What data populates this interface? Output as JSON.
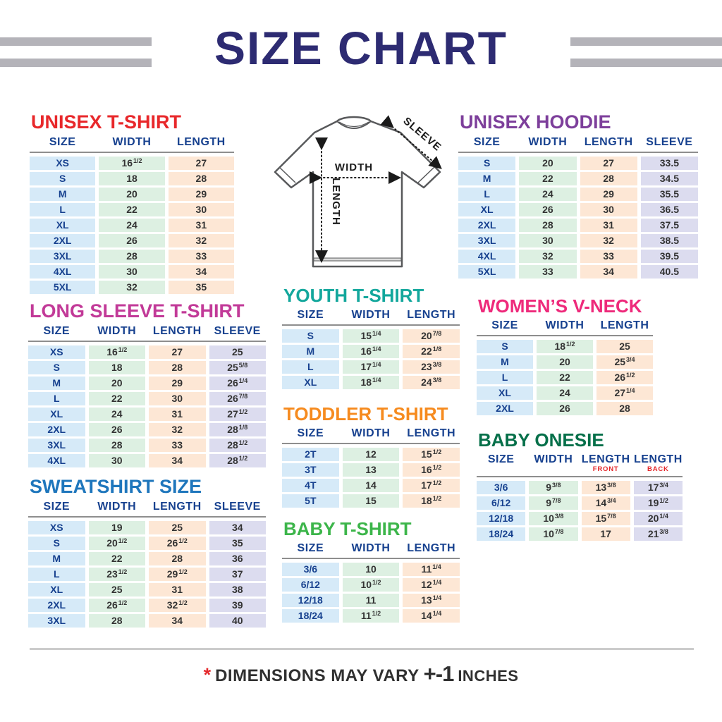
{
  "page": {
    "title": "SIZE CHART",
    "footer": {
      "asterisk": "*",
      "text": "DIMENSIONS MAY VARY",
      "variance": "+-1",
      "unit": "INCHES"
    }
  },
  "colors": {
    "size": "#d6eaf8",
    "width": "#ddf0e2",
    "length": "#fde7d5",
    "sleeve": "#dcdcef",
    "accent_navy": "#17418f",
    "title_navy": "#2d2b72",
    "text_dark": "#333333",
    "gray_bar": "#b4b3b9",
    "rule_gray": "#8e8e8e",
    "footer_red": "#e4282b"
  },
  "diagram": {
    "width_label": "WIDTH",
    "length_label": "LENGTH",
    "sleeve_label": "SLEEVE"
  },
  "tables": [
    {
      "id": "unisex-tshirt",
      "title": "UNISEX T-SHIRT",
      "title_color": "#e8282b",
      "columns": [
        {
          "label": "SIZE",
          "type": "size"
        },
        {
          "label": "WIDTH",
          "type": "width"
        },
        {
          "label": "LENGTH",
          "type": "length"
        }
      ],
      "rows": [
        [
          "XS",
          "16 1/2",
          "27"
        ],
        [
          "S",
          "18",
          "28"
        ],
        [
          "M",
          "20",
          "29"
        ],
        [
          "L",
          "22",
          "30"
        ],
        [
          "XL",
          "24",
          "31"
        ],
        [
          "2XL",
          "26",
          "32"
        ],
        [
          "3XL",
          "28",
          "33"
        ],
        [
          "4XL",
          "30",
          "34"
        ],
        [
          "5XL",
          "32",
          "35"
        ]
      ]
    },
    {
      "id": "unisex-hoodie",
      "title": "UNISEX HOODIE",
      "title_color": "#7d3f9b",
      "columns": [
        {
          "label": "SIZE",
          "type": "size"
        },
        {
          "label": "WIDTH",
          "type": "width"
        },
        {
          "label": "LENGTH",
          "type": "length"
        },
        {
          "label": "SLEEVE",
          "type": "sleeve"
        }
      ],
      "rows": [
        [
          "S",
          "20",
          "27",
          "33.5"
        ],
        [
          "M",
          "22",
          "28",
          "34.5"
        ],
        [
          "L",
          "24",
          "29",
          "35.5"
        ],
        [
          "XL",
          "26",
          "30",
          "36.5"
        ],
        [
          "2XL",
          "28",
          "31",
          "37.5"
        ],
        [
          "3XL",
          "30",
          "32",
          "38.5"
        ],
        [
          "4XL",
          "32",
          "33",
          "39.5"
        ],
        [
          "5XL",
          "33",
          "34",
          "40.5"
        ]
      ]
    },
    {
      "id": "long-sleeve-tshirt",
      "title": "LONG SLEEVE T-SHIRT",
      "title_color": "#c23a98",
      "columns": [
        {
          "label": "SIZE",
          "type": "size"
        },
        {
          "label": "WIDTH",
          "type": "width"
        },
        {
          "label": "LENGTH",
          "type": "length"
        },
        {
          "label": "SLEEVE",
          "type": "sleeve"
        }
      ],
      "rows": [
        [
          "XS",
          "16 1/2",
          "27",
          "25"
        ],
        [
          "S",
          "18",
          "28",
          "25 5/8"
        ],
        [
          "M",
          "20",
          "29",
          "26 1/4"
        ],
        [
          "L",
          "22",
          "30",
          "26 7/8"
        ],
        [
          "XL",
          "24",
          "31",
          "27 1/2"
        ],
        [
          "2XL",
          "26",
          "32",
          "28 1/8"
        ],
        [
          "3XL",
          "28",
          "33",
          "28 1/2"
        ],
        [
          "4XL",
          "30",
          "34",
          "28 1/2"
        ]
      ]
    },
    {
      "id": "youth-tshirt",
      "title": "YOUTH T-SHIRT",
      "title_color": "#13a79c",
      "columns": [
        {
          "label": "SIZE",
          "type": "size"
        },
        {
          "label": "WIDTH",
          "type": "width"
        },
        {
          "label": "LENGTH",
          "type": "length"
        }
      ],
      "rows": [
        [
          "S",
          "15 1/4",
          "20 7/8"
        ],
        [
          "M",
          "16 1/4",
          "22 1/8"
        ],
        [
          "L",
          "17 1/4",
          "23 3/8"
        ],
        [
          "XL",
          "18 1/4",
          "24 3/8"
        ]
      ]
    },
    {
      "id": "womens-vneck",
      "title": "WOMEN’S V-NECK",
      "title_color": "#ee2a7b",
      "columns": [
        {
          "label": "SIZE",
          "type": "size"
        },
        {
          "label": "WIDTH",
          "type": "width"
        },
        {
          "label": "LENGTH",
          "type": "length"
        }
      ],
      "rows": [
        [
          "S",
          "18 1/2",
          "25"
        ],
        [
          "M",
          "20",
          "25 3/4"
        ],
        [
          "L",
          "22",
          "26 1/2"
        ],
        [
          "XL",
          "24",
          "27 1/4"
        ],
        [
          "2XL",
          "26",
          "28"
        ]
      ]
    },
    {
      "id": "toddler-tshirt",
      "title": "TODDLER T-SHIRT",
      "title_color": "#f68b1f",
      "columns": [
        {
          "label": "SIZE",
          "type": "size"
        },
        {
          "label": "WIDTH",
          "type": "width"
        },
        {
          "label": "LENGTH",
          "type": "length"
        }
      ],
      "rows": [
        [
          "2T",
          "12",
          "15 1/2"
        ],
        [
          "3T",
          "13",
          "16 1/2"
        ],
        [
          "4T",
          "14",
          "17 1/2"
        ],
        [
          "5T",
          "15",
          "18 1/2"
        ]
      ]
    },
    {
      "id": "baby-onesie",
      "title": "BABY ONESIE",
      "title_color": "#06704a",
      "columns": [
        {
          "label": "SIZE",
          "type": "size"
        },
        {
          "label": "WIDTH",
          "type": "width"
        },
        {
          "label": "LENGTH",
          "sub": "FRONT",
          "type": "length"
        },
        {
          "label": "LENGTH",
          "sub": "BACK",
          "type": "sleeve"
        }
      ],
      "rows": [
        [
          "3/6",
          "9 3/8",
          "13 3/8",
          "17 3/4"
        ],
        [
          "6/12",
          "9 7/8",
          "14 3/4",
          "19 1/2"
        ],
        [
          "12/18",
          "10 3/8",
          "15 7/8",
          "20 1/4"
        ],
        [
          "18/24",
          "10 7/8",
          "17",
          "21 3/8"
        ]
      ]
    },
    {
      "id": "sweatshirt",
      "title": "SWEATSHIRT SIZE",
      "title_color": "#1e76bc",
      "columns": [
        {
          "label": "SIZE",
          "type": "size"
        },
        {
          "label": "WIDTH",
          "type": "width"
        },
        {
          "label": "LENGTH",
          "type": "length"
        },
        {
          "label": "SLEEVE",
          "type": "sleeve"
        }
      ],
      "rows": [
        [
          "XS",
          "19",
          "25",
          "34"
        ],
        [
          "S",
          "20 1/2",
          "26 1/2",
          "35"
        ],
        [
          "M",
          "22",
          "28",
          "36"
        ],
        [
          "L",
          "23 1/2",
          "29 1/2",
          "37"
        ],
        [
          "XL",
          "25",
          "31",
          "38"
        ],
        [
          "2XL",
          "26 1/2",
          "32 1/2",
          "39"
        ],
        [
          "3XL",
          "28",
          "34",
          "40"
        ]
      ]
    },
    {
      "id": "baby-tshirt",
      "title": "BABY T-SHIRT",
      "title_color": "#3cb54a",
      "columns": [
        {
          "label": "SIZE",
          "type": "size"
        },
        {
          "label": "WIDTH",
          "type": "width"
        },
        {
          "label": "LENGTH",
          "type": "length"
        }
      ],
      "rows": [
        [
          "3/6",
          "10",
          "11 1/4"
        ],
        [
          "6/12",
          "10 1/2",
          "12 1/4"
        ],
        [
          "12/18",
          "11",
          "13 1/4"
        ],
        [
          "18/24",
          "11 1/2",
          "14 1/4"
        ]
      ]
    }
  ]
}
